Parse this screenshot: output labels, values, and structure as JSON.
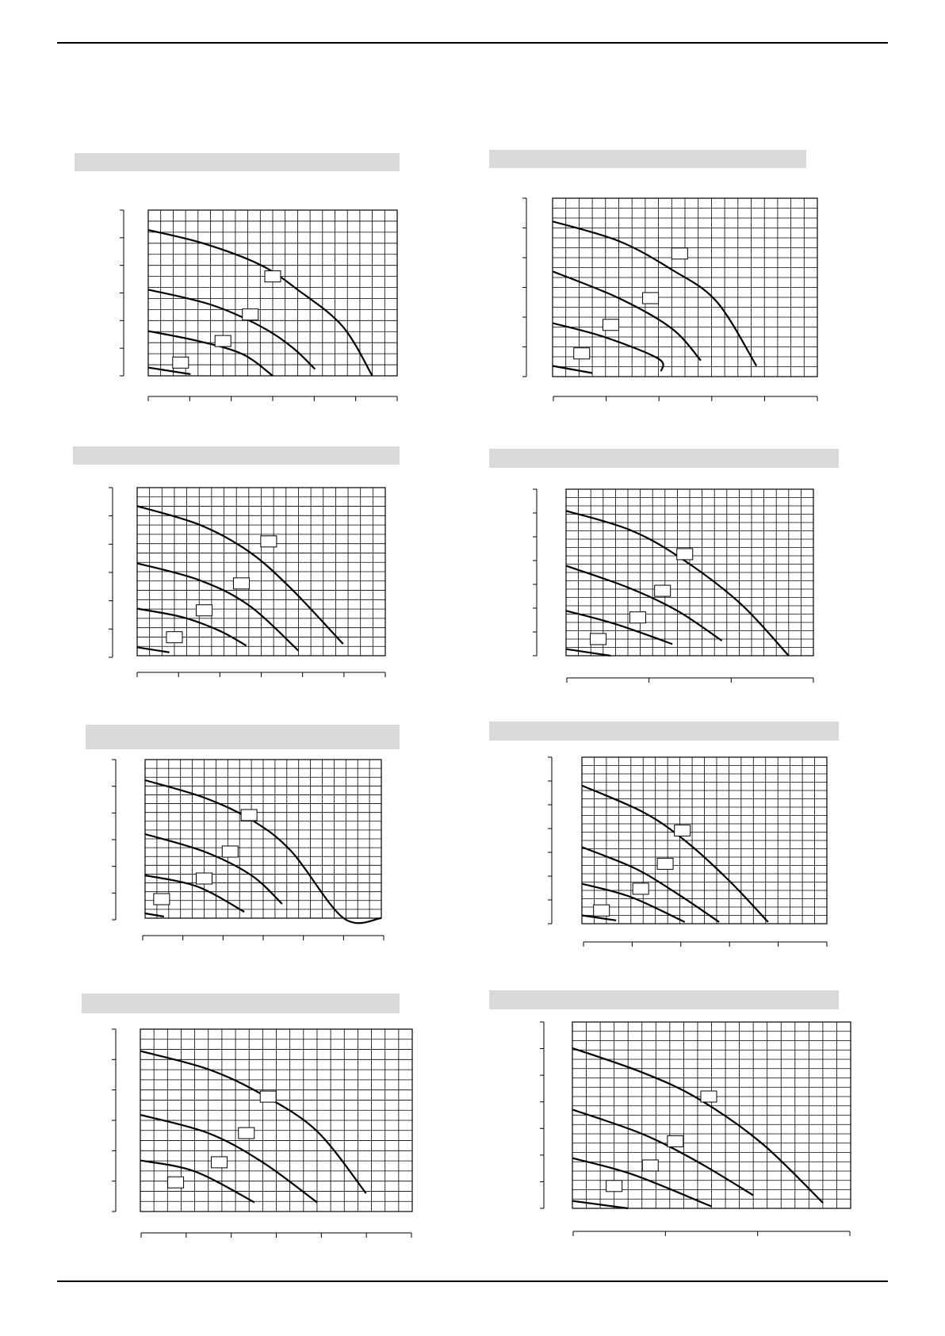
{
  "page": {
    "colors": {
      "title_bar": "#d9d9d9",
      "grid": "#000000",
      "curve": "#000000",
      "label_box": "#ffffff"
    }
  },
  "charts": [
    {
      "id": "left-1",
      "type": "line",
      "chart_data": {
        "type": "line",
        "grid": true,
        "title": "",
        "series": [
          {
            "name": "",
            "points": [
              [
                0,
                0.88
              ],
              [
                0.22,
                0.8
              ],
              [
                0.45,
                0.67
              ],
              [
                0.6,
                0.52
              ],
              [
                0.78,
                0.3
              ],
              [
                0.9,
                0.0
              ]
            ]
          },
          {
            "name": "",
            "points": [
              [
                0,
                0.52
              ],
              [
                0.25,
                0.43
              ],
              [
                0.45,
                0.3
              ],
              [
                0.58,
                0.17
              ],
              [
                0.67,
                0.04
              ]
            ]
          },
          {
            "name": "",
            "points": [
              [
                0,
                0.27
              ],
              [
                0.2,
                0.21
              ],
              [
                0.38,
                0.13
              ],
              [
                0.5,
                0.0
              ]
            ]
          },
          {
            "name": "",
            "points": [
              [
                0,
                0.05
              ],
              [
                0.17,
                0.01
              ]
            ]
          }
        ],
        "labels": [
          {
            "text": "",
            "x": 0.5,
            "y": 0.6
          },
          {
            "text": "",
            "x": 0.41,
            "y": 0.37
          },
          {
            "text": "",
            "x": 0.3,
            "y": 0.21
          },
          {
            "text": "",
            "x": 0.13,
            "y": 0.08
          }
        ]
      }
    },
    {
      "id": "right-1",
      "type": "line",
      "chart_data": {
        "type": "line",
        "grid": true,
        "title": "",
        "series": [
          {
            "name": "",
            "points": [
              [
                0,
                0.87
              ],
              [
                0.25,
                0.76
              ],
              [
                0.45,
                0.6
              ],
              [
                0.62,
                0.42
              ],
              [
                0.77,
                0.06
              ]
            ]
          },
          {
            "name": "",
            "points": [
              [
                0,
                0.59
              ],
              [
                0.25,
                0.44
              ],
              [
                0.45,
                0.27
              ],
              [
                0.56,
                0.09
              ]
            ]
          },
          {
            "name": "",
            "points": [
              [
                0,
                0.3
              ],
              [
                0.2,
                0.22
              ],
              [
                0.4,
                0.1
              ],
              [
                0.41,
                0.03
              ]
            ]
          },
          {
            "name": "",
            "points": [
              [
                0,
                0.06
              ],
              [
                0.15,
                0.02
              ]
            ]
          }
        ],
        "labels": [
          {
            "text": "",
            "x": 0.48,
            "y": 0.69
          },
          {
            "text": "",
            "x": 0.37,
            "y": 0.44
          },
          {
            "text": "",
            "x": 0.22,
            "y": 0.29
          },
          {
            "text": "",
            "x": 0.11,
            "y": 0.13
          }
        ]
      }
    },
    {
      "id": "left-2",
      "type": "line",
      "chart_data": {
        "type": "line",
        "grid": true,
        "title": "",
        "series": [
          {
            "name": "",
            "points": [
              [
                0,
                0.89
              ],
              [
                0.25,
                0.78
              ],
              [
                0.45,
                0.62
              ],
              [
                0.62,
                0.4
              ],
              [
                0.83,
                0.07
              ]
            ]
          },
          {
            "name": "",
            "points": [
              [
                0,
                0.55
              ],
              [
                0.25,
                0.45
              ],
              [
                0.45,
                0.3
              ],
              [
                0.65,
                0.03
              ]
            ]
          },
          {
            "name": "",
            "points": [
              [
                0,
                0.28
              ],
              [
                0.18,
                0.23
              ],
              [
                0.33,
                0.15
              ],
              [
                0.44,
                0.06
              ]
            ]
          },
          {
            "name": "",
            "points": [
              [
                0,
                0.05
              ],
              [
                0.13,
                0.02
              ]
            ]
          }
        ],
        "labels": [
          {
            "text": "",
            "x": 0.53,
            "y": 0.68
          },
          {
            "text": "",
            "x": 0.42,
            "y": 0.43
          },
          {
            "text": "",
            "x": 0.27,
            "y": 0.27
          },
          {
            "text": "",
            "x": 0.15,
            "y": 0.11
          }
        ]
      }
    },
    {
      "id": "right-2",
      "type": "line",
      "chart_data": {
        "type": "line",
        "grid": true,
        "title": "",
        "series": [
          {
            "name": "",
            "points": [
              [
                0,
                0.87
              ],
              [
                0.25,
                0.76
              ],
              [
                0.45,
                0.6
              ],
              [
                0.7,
                0.32
              ],
              [
                0.9,
                0.0
              ]
            ]
          },
          {
            "name": "",
            "points": [
              [
                0,
                0.54
              ],
              [
                0.25,
                0.41
              ],
              [
                0.45,
                0.27
              ],
              [
                0.63,
                0.09
              ]
            ]
          },
          {
            "name": "",
            "points": [
              [
                0,
                0.27
              ],
              [
                0.2,
                0.19
              ],
              [
                0.43,
                0.07
              ]
            ]
          },
          {
            "name": "",
            "points": [
              [
                0,
                0.04
              ],
              [
                0.18,
                0.0
              ]
            ]
          }
        ],
        "labels": [
          {
            "text": "",
            "x": 0.48,
            "y": 0.61
          },
          {
            "text": "",
            "x": 0.39,
            "y": 0.39
          },
          {
            "text": "",
            "x": 0.29,
            "y": 0.23
          },
          {
            "text": "",
            "x": 0.13,
            "y": 0.1
          }
        ]
      }
    },
    {
      "id": "left-3",
      "type": "line",
      "chart_data": {
        "type": "line",
        "grid": true,
        "title": "",
        "series": [
          {
            "name": "",
            "points": [
              [
                0,
                0.87
              ],
              [
                0.25,
                0.76
              ],
              [
                0.45,
                0.62
              ],
              [
                0.62,
                0.42
              ],
              [
                0.84,
                0.0
              ],
              [
                1.0,
                0.0
              ]
            ]
          },
          {
            "name": "",
            "points": [
              [
                0,
                0.53
              ],
              [
                0.25,
                0.42
              ],
              [
                0.45,
                0.27
              ],
              [
                0.58,
                0.09
              ]
            ]
          },
          {
            "name": "",
            "points": [
              [
                0,
                0.27
              ],
              [
                0.22,
                0.2
              ],
              [
                0.42,
                0.04
              ]
            ]
          },
          {
            "name": "",
            "points": [
              [
                0,
                0.03
              ],
              [
                0.08,
                0.01
              ]
            ]
          }
        ],
        "labels": [
          {
            "text": "",
            "x": 0.44,
            "y": 0.65
          },
          {
            "text": "",
            "x": 0.36,
            "y": 0.42
          },
          {
            "text": "",
            "x": 0.25,
            "y": 0.25
          },
          {
            "text": "",
            "x": 0.07,
            "y": 0.12
          }
        ]
      }
    },
    {
      "id": "right-3",
      "type": "line",
      "chart_data": {
        "type": "line",
        "grid": true,
        "title": "",
        "series": [
          {
            "name": "",
            "points": [
              [
                0,
                0.83
              ],
              [
                0.25,
                0.67
              ],
              [
                0.42,
                0.5
              ],
              [
                0.6,
                0.26
              ],
              [
                0.76,
                0.01
              ]
            ]
          },
          {
            "name": "",
            "points": [
              [
                0,
                0.46
              ],
              [
                0.22,
                0.33
              ],
              [
                0.4,
                0.17
              ],
              [
                0.56,
                0.01
              ]
            ]
          },
          {
            "name": "",
            "points": [
              [
                0,
                0.24
              ],
              [
                0.2,
                0.16
              ],
              [
                0.42,
                0.01
              ]
            ]
          },
          {
            "name": "",
            "points": [
              [
                0,
                0.05
              ],
              [
                0.14,
                0.02
              ]
            ]
          }
        ],
        "labels": [
          {
            "text": "",
            "x": 0.41,
            "y": 0.56
          },
          {
            "text": "",
            "x": 0.34,
            "y": 0.36
          },
          {
            "text": "",
            "x": 0.24,
            "y": 0.21
          },
          {
            "text": "",
            "x": 0.08,
            "y": 0.08
          }
        ]
      }
    },
    {
      "id": "left-4",
      "type": "line",
      "chart_data": {
        "type": "line",
        "grid": true,
        "title": "",
        "series": [
          {
            "name": "",
            "points": [
              [
                0,
                0.88
              ],
              [
                0.25,
                0.78
              ],
              [
                0.45,
                0.64
              ],
              [
                0.65,
                0.44
              ],
              [
                0.83,
                0.1
              ]
            ]
          },
          {
            "name": "",
            "points": [
              [
                0,
                0.53
              ],
              [
                0.25,
                0.43
              ],
              [
                0.45,
                0.27
              ],
              [
                0.65,
                0.05
              ]
            ]
          },
          {
            "name": "",
            "points": [
              [
                0,
                0.28
              ],
              [
                0.2,
                0.22
              ],
              [
                0.42,
                0.05
              ]
            ]
          }
        ],
        "labels": [
          {
            "text": "",
            "x": 0.47,
            "y": 0.63
          },
          {
            "text": "",
            "x": 0.39,
            "y": 0.43
          },
          {
            "text": "",
            "x": 0.29,
            "y": 0.27
          },
          {
            "text": "",
            "x": 0.13,
            "y": 0.16
          }
        ]
      }
    },
    {
      "id": "right-4",
      "type": "line",
      "chart_data": {
        "type": "line",
        "grid": true,
        "title": "",
        "series": [
          {
            "name": "",
            "points": [
              [
                0,
                0.86
              ],
              [
                0.25,
                0.73
              ],
              [
                0.45,
                0.59
              ],
              [
                0.68,
                0.35
              ],
              [
                0.9,
                0.03
              ]
            ]
          },
          {
            "name": "",
            "points": [
              [
                0,
                0.53
              ],
              [
                0.25,
                0.4
              ],
              [
                0.45,
                0.25
              ],
              [
                0.65,
                0.07
              ]
            ]
          },
          {
            "name": "",
            "points": [
              [
                0,
                0.27
              ],
              [
                0.22,
                0.18
              ],
              [
                0.5,
                0.01
              ]
            ]
          },
          {
            "name": "",
            "points": [
              [
                0,
                0.04
              ],
              [
                0.2,
                0.0
              ]
            ]
          }
        ],
        "labels": [
          {
            "text": "",
            "x": 0.49,
            "y": 0.6
          },
          {
            "text": "",
            "x": 0.37,
            "y": 0.36
          },
          {
            "text": "",
            "x": 0.28,
            "y": 0.23
          },
          {
            "text": "",
            "x": 0.15,
            "y": 0.12
          }
        ]
      }
    }
  ]
}
